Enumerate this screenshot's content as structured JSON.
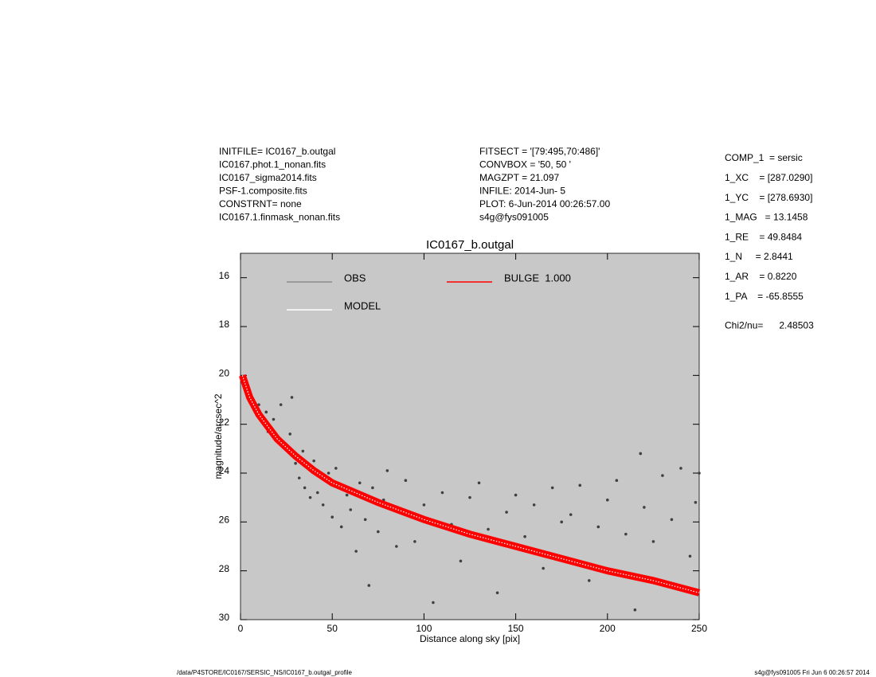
{
  "chart_data": {
    "type": "scatter",
    "title": "IC0167_b.outgal",
    "x_label": "Distance along sky [pix]",
    "y_label": "magnitude/arcsec^2",
    "xlim": [
      0,
      250
    ],
    "ylim": [
      15,
      30
    ],
    "y_reversed": true,
    "xticks": [
      0,
      50,
      100,
      150,
      200,
      250
    ],
    "yticks": [
      16,
      18,
      20,
      22,
      24,
      26,
      28,
      30
    ],
    "background": "#c8c8c8",
    "series": [
      {
        "name": "OBS",
        "kind": "points",
        "color": "#404040",
        "legend_color": "#8c8c8c",
        "x": [
          3,
          6,
          8,
          10,
          12,
          14,
          15,
          18,
          20,
          22,
          25,
          27,
          28,
          30,
          32,
          34,
          35,
          38,
          40,
          42,
          45,
          48,
          50,
          52,
          55,
          58,
          60,
          63,
          65,
          68,
          70,
          72,
          75,
          78,
          80,
          85,
          88,
          90,
          95,
          100,
          105,
          110,
          115,
          120,
          125,
          130,
          135,
          140,
          145,
          150,
          155,
          160,
          165,
          170,
          175,
          180,
          185,
          190,
          195,
          200,
          205,
          210,
          215,
          218,
          220,
          225,
          230,
          235,
          240,
          245,
          248,
          250
        ],
        "values": [
          20.5,
          20.9,
          21.4,
          21.2,
          21.9,
          21.5,
          22.3,
          21.8,
          22.6,
          21.2,
          23.0,
          22.4,
          20.9,
          23.6,
          24.2,
          23.1,
          24.6,
          25.0,
          23.5,
          24.8,
          25.3,
          24.0,
          25.8,
          23.8,
          26.2,
          24.9,
          25.5,
          27.2,
          24.4,
          25.9,
          28.6,
          24.6,
          26.4,
          25.1,
          23.9,
          27.0,
          25.6,
          24.3,
          26.8,
          25.3,
          29.3,
          24.8,
          26.1,
          27.6,
          25.0,
          24.4,
          26.3,
          28.9,
          25.6,
          24.9,
          26.6,
          25.3,
          27.9,
          24.6,
          26.0,
          25.7,
          24.5,
          28.4,
          26.2,
          25.1,
          24.3,
          26.5,
          29.6,
          23.2,
          25.4,
          26.8,
          24.1,
          25.9,
          23.8,
          27.4,
          25.2,
          24.0
        ]
      },
      {
        "name": "BULGE  1.000",
        "kind": "line",
        "color": "#ff0000",
        "legend_color": "#ff0000",
        "x": [
          1,
          5,
          10,
          20,
          30,
          40,
          50,
          75,
          100,
          125,
          150,
          175,
          200,
          225,
          250
        ],
        "values": [
          20.0,
          20.9,
          21.6,
          22.6,
          23.3,
          23.9,
          24.4,
          25.2,
          25.9,
          26.5,
          27.0,
          27.5,
          28.0,
          28.4,
          28.9
        ]
      },
      {
        "name": "MODEL",
        "kind": "line",
        "color": "#ffffff",
        "legend_color": "#ffffff",
        "x": [
          1,
          5,
          10,
          20,
          30,
          40,
          50,
          75,
          100,
          125,
          150,
          175,
          200,
          225,
          250
        ],
        "values": [
          20.0,
          20.9,
          21.6,
          22.6,
          23.3,
          23.9,
          24.4,
          25.2,
          25.9,
          26.5,
          27.0,
          27.5,
          28.0,
          28.4,
          28.9
        ]
      }
    ],
    "info_left": [
      "INITFILE= IC0167_b.outgal",
      "IC0167.phot.1_nonan.fits",
      "IC0167_sigma2014.fits",
      "PSF-1.composite.fits",
      "CONSTRNT= none",
      "IC0167.1.finmask_nonan.fits"
    ],
    "info_center": [
      "FITSECT = '[79:495,70:486]'",
      "CONVBOX = '50, 50  '",
      "MAGZPT =             21.097",
      "INFILE: 2014-Jun- 5",
      "PLOT:  6-Jun-2014 00:26:57.00",
      "s4g@fys091005"
    ],
    "params": [
      "COMP_1  = sersic",
      "1_XC    = [287.0290]",
      "1_YC    = [278.6930]",
      "1_MAG   = 13.1458",
      "1_RE    = 49.8484",
      "1_N     = 2.8441",
      "1_AR    = 0.8220",
      "1_PA    = -65.8555",
      "Chi2/nu=      2.48503"
    ],
    "footer_left": "/data/P4STORE/IC0167/SERSIC_NS/IC0167_b.outgal_profile",
    "footer_right": "s4g@fys091005  Fri Jun  6 00:26:57 2014"
  }
}
